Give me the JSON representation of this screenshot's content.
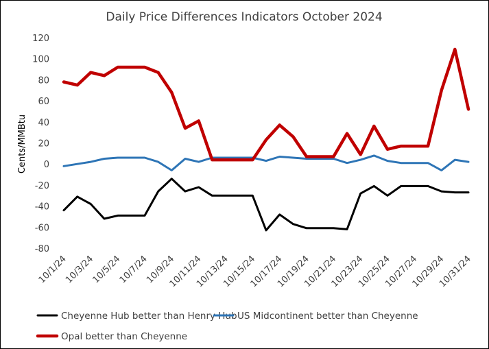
{
  "chart_data": {
    "type": "line",
    "title": "Daily Price Differences Indicators October 2024",
    "xlabel": "",
    "ylabel": "Cents/MMBtu",
    "ylim": [
      -80,
      120
    ],
    "yticks": [
      -80,
      -60,
      -40,
      -20,
      0,
      20,
      40,
      60,
      80,
      100,
      120
    ],
    "x": [
      "10/1/24",
      "10/2/24",
      "10/3/24",
      "10/4/24",
      "10/5/24",
      "10/6/24",
      "10/7/24",
      "10/8/24",
      "10/9/24",
      "10/10/24",
      "10/11/24",
      "10/12/24",
      "10/13/24",
      "10/14/24",
      "10/15/24",
      "10/16/24",
      "10/17/24",
      "10/18/24",
      "10/19/24",
      "10/20/24",
      "10/21/24",
      "10/22/24",
      "10/23/24",
      "10/24/24",
      "10/25/24",
      "10/26/24",
      "10/27/24",
      "10/28/24",
      "10/29/24",
      "10/30/24",
      "10/31/24"
    ],
    "xtick_labels": [
      "10/1/24",
      "10/3/24",
      "10/5/24",
      "10/7/24",
      "10/9/24",
      "10/11/24",
      "10/13/24",
      "10/15/24",
      "10/17/24",
      "10/19/24",
      "10/21/24",
      "10/23/24",
      "10/25/24",
      "10/27/24",
      "10/29/24",
      "10/31/24"
    ],
    "grid": false,
    "legend_position": "bottom",
    "series": [
      {
        "name": "Cheyenne Hub better than Henry Hub",
        "color": "#000000",
        "values": [
          -44,
          -31,
          -38,
          -52,
          -49,
          -49,
          -49,
          -26,
          -14,
          -26,
          -22,
          -30,
          -30,
          -30,
          -30,
          -63,
          -48,
          -57,
          -61,
          -61,
          -61,
          -62,
          -28,
          -21,
          -30,
          -21,
          -21,
          -21,
          -26,
          -27,
          -27
        ]
      },
      {
        "name": "US Midcontinent better than Cheyenne",
        "color": "#2e75b6",
        "values": [
          -2,
          0,
          2,
          5,
          6,
          6,
          6,
          2,
          -6,
          5,
          2,
          6,
          6,
          6,
          6,
          3,
          7,
          6,
          5,
          5,
          5,
          1,
          4,
          8,
          3,
          1,
          1,
          1,
          -6,
          4,
          2
        ]
      },
      {
        "name": "Opal better than Cheyenne",
        "color": "#c00000",
        "values": [
          78,
          75,
          87,
          84,
          92,
          92,
          92,
          87,
          68,
          34,
          41,
          4,
          4,
          4,
          4,
          23,
          37,
          26,
          7,
          7,
          7,
          29,
          9,
          36,
          14,
          17,
          17,
          17,
          70,
          109,
          52
        ]
      }
    ]
  }
}
